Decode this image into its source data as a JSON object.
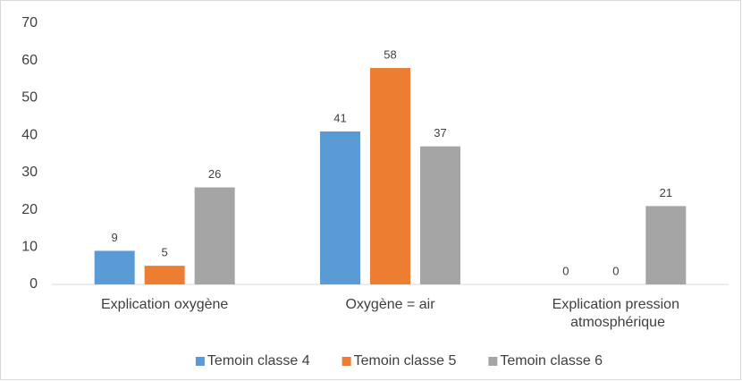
{
  "chart_data": {
    "type": "bar",
    "categories": [
      "Explication oxygène",
      "Oxygène = air",
      "Explication pression atmosphérique"
    ],
    "series": [
      {
        "name": "Temoin classe 4",
        "color": "#5b9bd5",
        "values": [
          9,
          41,
          0
        ]
      },
      {
        "name": "Temoin classe 5",
        "color": "#ed7d31",
        "values": [
          5,
          58,
          0
        ]
      },
      {
        "name": "Temoin classe 6",
        "color": "#a5a5a5",
        "values": [
          26,
          37,
          21
        ]
      }
    ],
    "ylim": [
      0,
      70
    ],
    "yticks": [
      0,
      10,
      20,
      30,
      40,
      50,
      60,
      70
    ],
    "grid": false,
    "legend": "bottom"
  }
}
